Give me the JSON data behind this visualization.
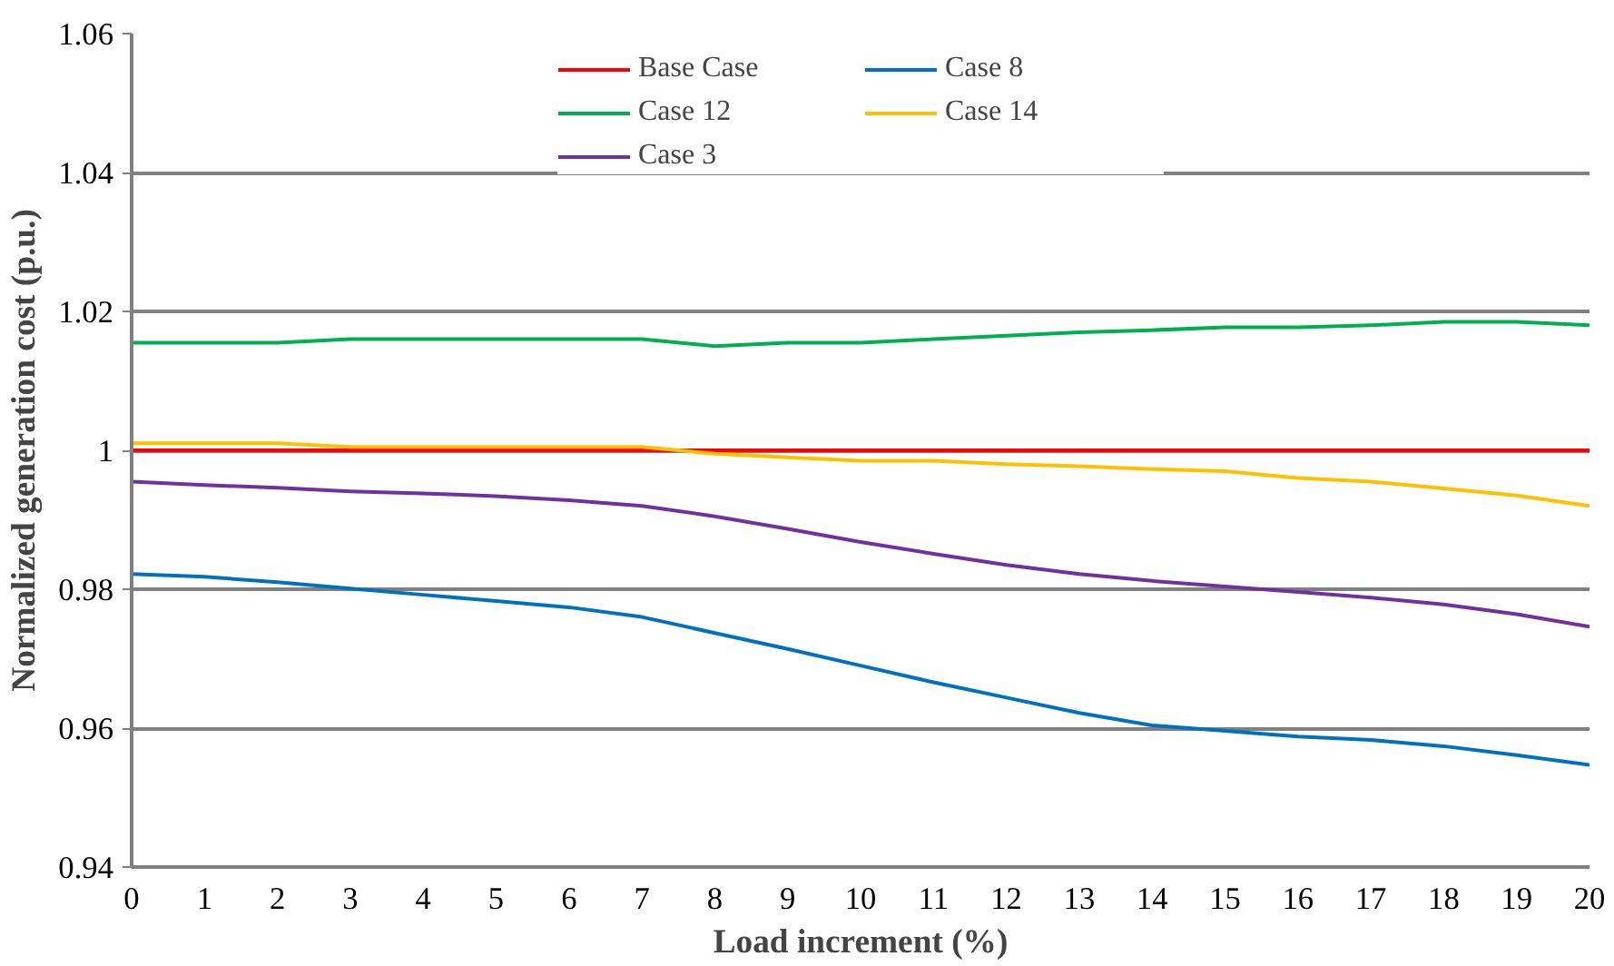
{
  "chart_data": {
    "type": "line",
    "xlabel": "Load increment (%)",
    "ylabel": "Normalized generation cost (p.u.)",
    "x": [
      0,
      1,
      2,
      3,
      4,
      5,
      6,
      7,
      8,
      9,
      10,
      11,
      12,
      13,
      14,
      15,
      16,
      17,
      18,
      19,
      20
    ],
    "series": [
      {
        "name": "Base Case",
        "color": "#ff0000",
        "values": [
          1,
          1,
          1,
          1,
          1,
          1,
          1,
          1,
          1,
          1,
          1,
          1,
          1,
          1,
          1,
          1,
          1,
          1,
          1,
          1,
          1
        ]
      },
      {
        "name": "Case 8",
        "color": "#0070c0",
        "values": [
          0.9822,
          0.9818,
          0.981,
          0.9801,
          0.9792,
          0.9783,
          0.9774,
          0.976,
          0.9737,
          0.9714,
          0.969,
          0.9666,
          0.9644,
          0.9622,
          0.9604,
          0.9596,
          0.9588,
          0.9583,
          0.9574,
          0.9561,
          0.9547
        ]
      },
      {
        "name": "Case 12",
        "color": "#00b050",
        "values": [
          1.0155,
          1.0155,
          1.0155,
          1.016,
          1.016,
          1.016,
          1.016,
          1.016,
          1.015,
          1.0155,
          1.0155,
          1.016,
          1.0165,
          1.017,
          1.0173,
          1.0177,
          1.0177,
          1.018,
          1.0185,
          1.0185,
          1.018
        ]
      },
      {
        "name": "Case 14",
        "color": "#ffc000",
        "values": [
          1.001,
          1.001,
          1.001,
          1.0005,
          1.0005,
          1.0005,
          1.0005,
          1.0005,
          0.9995,
          0.999,
          0.9985,
          0.9985,
          0.998,
          0.9977,
          0.9973,
          0.997,
          0.996,
          0.9955,
          0.9945,
          0.9935,
          0.992
        ]
      },
      {
        "name": "Case 3",
        "color": "#7030a0",
        "values": [
          0.9955,
          0.995,
          0.9946,
          0.9941,
          0.9938,
          0.9934,
          0.9928,
          0.992,
          0.9905,
          0.9887,
          0.9868,
          0.9851,
          0.9835,
          0.9822,
          0.9812,
          0.9804,
          0.9796,
          0.9788,
          0.9778,
          0.9764,
          0.9746
        ]
      }
    ],
    "xlim": [
      0,
      20
    ],
    "xticks": [
      0,
      1,
      2,
      3,
      4,
      5,
      6,
      7,
      8,
      9,
      10,
      11,
      12,
      13,
      14,
      15,
      16,
      17,
      18,
      19,
      20
    ],
    "ylim": [
      0.94,
      1.06
    ],
    "yticks": [
      0.94,
      0.96,
      0.98,
      1,
      1.02,
      1.04,
      1.06
    ],
    "grid": "y",
    "legend": "top",
    "marker": "none",
    "line_style": "solid"
  }
}
